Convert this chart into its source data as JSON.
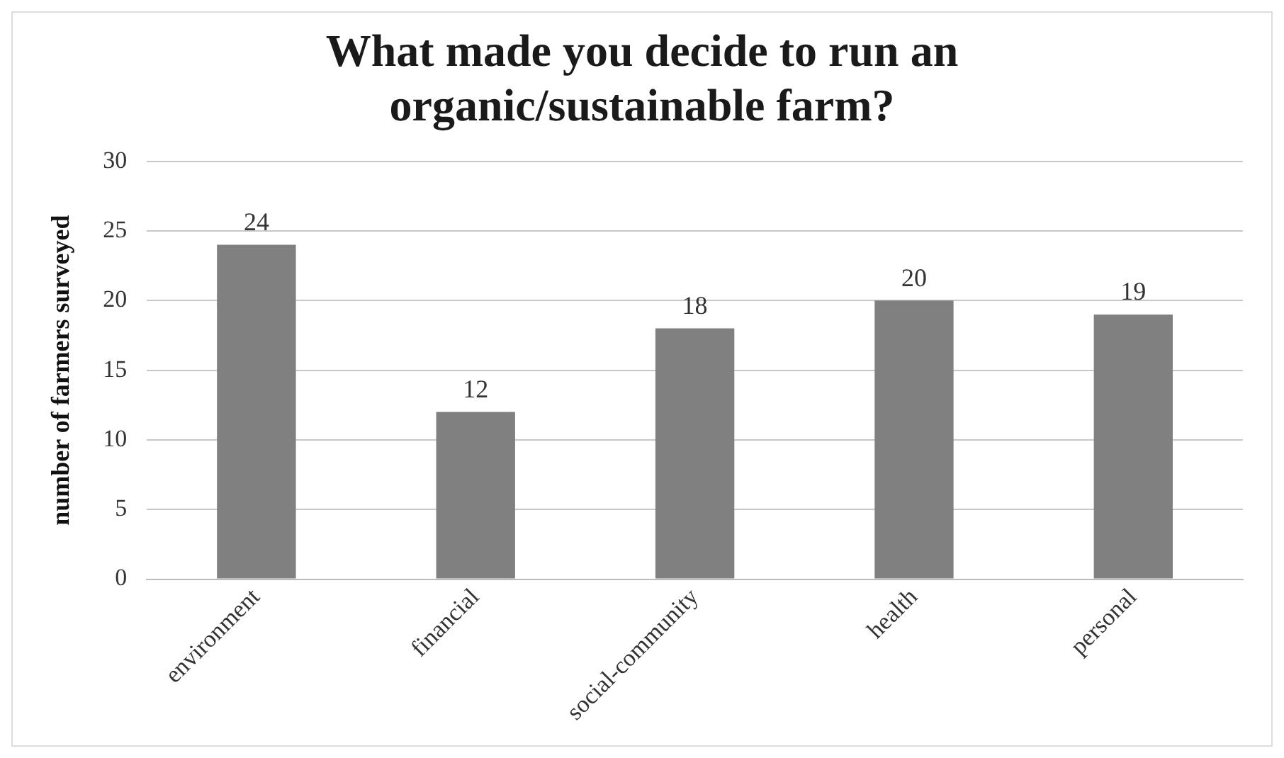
{
  "chart_data": {
    "type": "bar",
    "title": "What made you decide to run an organic/sustainable farm?",
    "ylabel": "number of farmers surveyed",
    "categories": [
      "environment",
      "financial",
      "social-community",
      "health",
      "personal"
    ],
    "values": [
      24,
      12,
      18,
      20,
      19
    ],
    "color": "#808080",
    "ylim": [
      0,
      30
    ],
    "yticks": [
      0,
      5,
      10,
      15,
      20,
      25,
      30
    ],
    "grid": "y",
    "data_labels": true,
    "legend": false
  }
}
